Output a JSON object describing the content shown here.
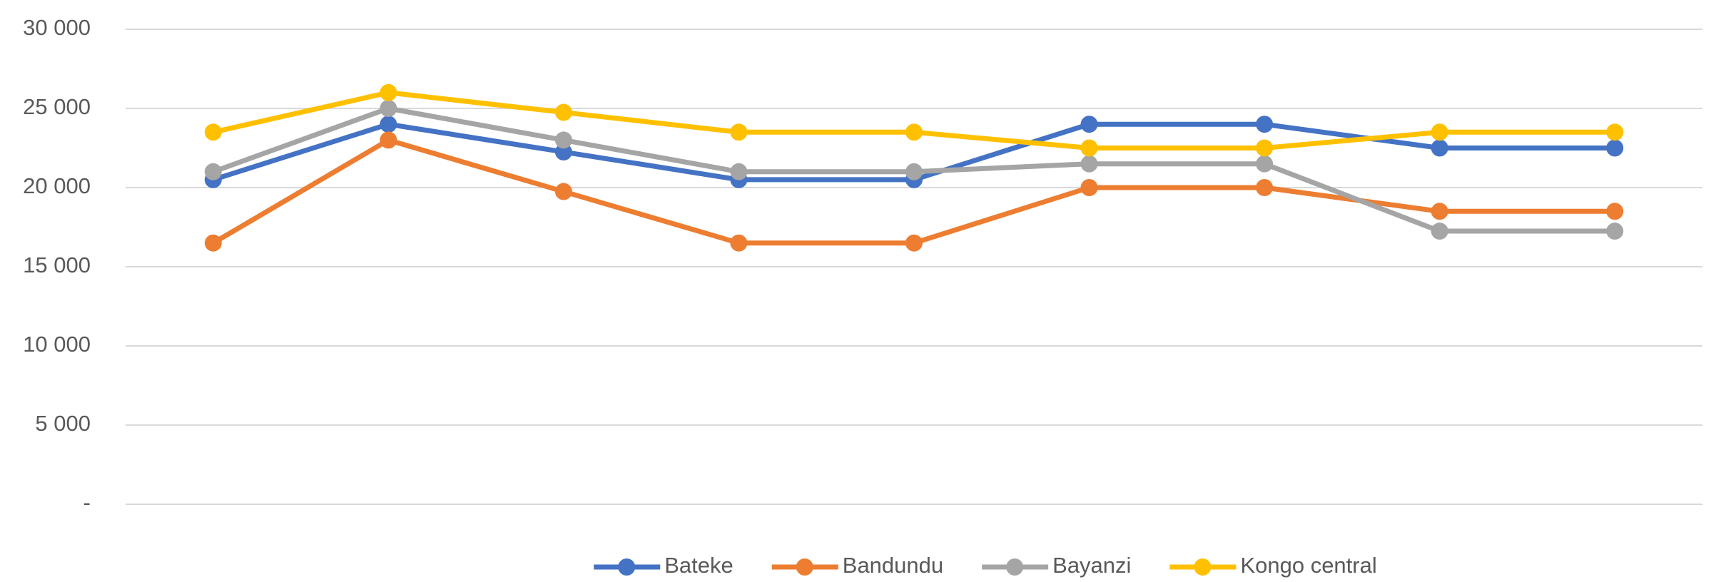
{
  "chart_data": {
    "type": "line",
    "categories": [
      null,
      null,
      null,
      null,
      null,
      null,
      null,
      null,
      null
    ],
    "series": [
      {
        "name": "Bateke",
        "color": "#4472c4",
        "values": [
          20500,
          24000,
          22250,
          20500,
          20500,
          24000,
          24000,
          22500,
          22500
        ]
      },
      {
        "name": "Bandundu",
        "color": "#ed7d31",
        "values": [
          16500,
          23000,
          19750,
          16500,
          16500,
          20000,
          20000,
          18500,
          18500
        ]
      },
      {
        "name": "Bayanzi",
        "color": "#a5a5a5",
        "values": [
          21000,
          25000,
          23000,
          21000,
          21000,
          21500,
          21500,
          17250,
          17250
        ]
      },
      {
        "name": "Kongo central",
        "color": "#ffc000",
        "values": [
          23500,
          26000,
          24750,
          23500,
          23500,
          22500,
          22500,
          23500,
          23500
        ]
      }
    ],
    "ylim": [
      0,
      30000
    ],
    "yticks": [
      {
        "value": 0,
        "label": "-"
      },
      {
        "value": 5000,
        "label": "5 000"
      },
      {
        "value": 10000,
        "label": "10 000"
      },
      {
        "value": 15000,
        "label": "15 000"
      },
      {
        "value": 20000,
        "label": "20 000"
      },
      {
        "value": 25000,
        "label": "25 000"
      },
      {
        "value": 30000,
        "label": "30 000"
      }
    ],
    "grid": true,
    "legend": "bottom"
  }
}
